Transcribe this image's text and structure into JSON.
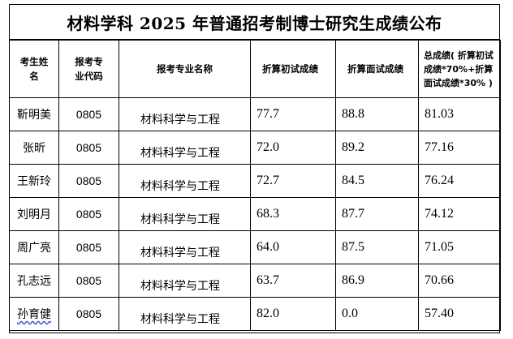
{
  "title": "材料学科 2025 年普通招考制博士研究生成绩公布",
  "headers": {
    "name_line1": "考生姓",
    "name_line2": "名",
    "code_line1": "报考专",
    "code_line2": "业代码",
    "major": "报考专业名称",
    "written": "折算初试成绩",
    "interview": "折算面试成绩",
    "total_line1": "总成绩( 折算初试",
    "total_line2": "成绩*70%+折算",
    "total_line3": "面试成绩*30% )"
  },
  "rows": [
    {
      "name": "靳明美",
      "code": "0805",
      "major": "材料科学与工程",
      "written": "77.7",
      "interview": "88.8",
      "total": "81.03"
    },
    {
      "name": "张昕",
      "code": "0805",
      "major": "材料科学与工程",
      "written": "72.0",
      "interview": "89.2",
      "total": "77.16"
    },
    {
      "name": "王新玲",
      "code": "0805",
      "major": "材料科学与工程",
      "written": "72.7",
      "interview": "84.5",
      "total": "76.24"
    },
    {
      "name": "刘明月",
      "code": "0805",
      "major": "材料科学与工程",
      "written": "68.3",
      "interview": "87.7",
      "total": "74.12"
    },
    {
      "name": "周广亮",
      "code": "0805",
      "major": "材料科学与工程",
      "written": "64.0",
      "interview": "87.5",
      "total": "71.05"
    },
    {
      "name": "孔志远",
      "code": "0805",
      "major": "材料科学与工程",
      "written": "63.7",
      "interview": "86.9",
      "total": "70.66"
    },
    {
      "name": "孙育健",
      "code": "0805",
      "major": "材料科学与工程",
      "written": "82.0",
      "interview": "0.0",
      "total": "57.40"
    }
  ]
}
